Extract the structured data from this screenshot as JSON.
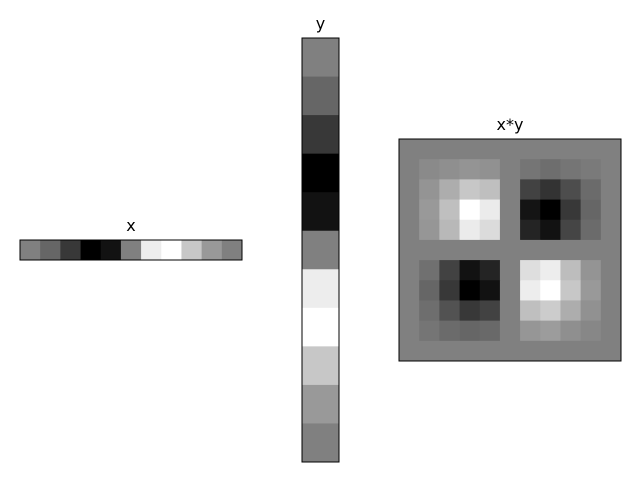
{
  "chart_data": [
    {
      "type": "heatmap",
      "title": "x",
      "colormap": "gray",
      "value_range": [
        0,
        1
      ],
      "grid": false,
      "shape": [
        1,
        11
      ],
      "values": [
        [
          0.5,
          0.4,
          0.22,
          0.0,
          0.07,
          0.5,
          0.93,
          1.0,
          0.78,
          0.6,
          0.5
        ]
      ]
    },
    {
      "type": "heatmap",
      "title": "y",
      "colormap": "gray",
      "value_range": [
        0,
        1
      ],
      "grid": false,
      "shape": [
        11,
        1
      ],
      "values": [
        [
          0.5
        ],
        [
          0.4
        ],
        [
          0.22
        ],
        [
          0.0
        ],
        [
          0.07
        ],
        [
          0.5
        ],
        [
          0.93
        ],
        [
          1.0
        ],
        [
          0.78
        ],
        [
          0.6
        ],
        [
          0.5
        ]
      ]
    },
    {
      "type": "heatmap",
      "title": "x*y",
      "colormap": "gray",
      "value_range": [
        0,
        1
      ],
      "grid": false,
      "shape": [
        11,
        11
      ],
      "values": [
        [
          0.5,
          0.5,
          0.5,
          0.5,
          0.5,
          0.5,
          0.5,
          0.5,
          0.5,
          0.5,
          0.5
        ],
        [
          0.5,
          0.54,
          0.56,
          0.58,
          0.57,
          0.5,
          0.46,
          0.43,
          0.46,
          0.48,
          0.5
        ],
        [
          0.5,
          0.58,
          0.68,
          0.78,
          0.75,
          0.5,
          0.26,
          0.2,
          0.3,
          0.42,
          0.5
        ],
        [
          0.5,
          0.6,
          0.75,
          1.0,
          0.92,
          0.5,
          0.08,
          0.0,
          0.22,
          0.4,
          0.5
        ],
        [
          0.5,
          0.59,
          0.72,
          0.92,
          0.86,
          0.5,
          0.14,
          0.07,
          0.27,
          0.42,
          0.5
        ],
        [
          0.5,
          0.5,
          0.5,
          0.5,
          0.5,
          0.5,
          0.5,
          0.5,
          0.5,
          0.5,
          0.5
        ],
        [
          0.5,
          0.44,
          0.26,
          0.07,
          0.14,
          0.5,
          0.87,
          0.93,
          0.74,
          0.58,
          0.5
        ],
        [
          0.5,
          0.4,
          0.22,
          0.0,
          0.07,
          0.5,
          0.93,
          1.0,
          0.78,
          0.6,
          0.5
        ],
        [
          0.5,
          0.43,
          0.32,
          0.22,
          0.26,
          0.5,
          0.75,
          0.8,
          0.68,
          0.57,
          0.5
        ],
        [
          0.5,
          0.46,
          0.42,
          0.4,
          0.41,
          0.5,
          0.59,
          0.61,
          0.56,
          0.53,
          0.5
        ],
        [
          0.5,
          0.5,
          0.5,
          0.5,
          0.5,
          0.5,
          0.5,
          0.5,
          0.5,
          0.5,
          0.5
        ]
      ]
    }
  ]
}
